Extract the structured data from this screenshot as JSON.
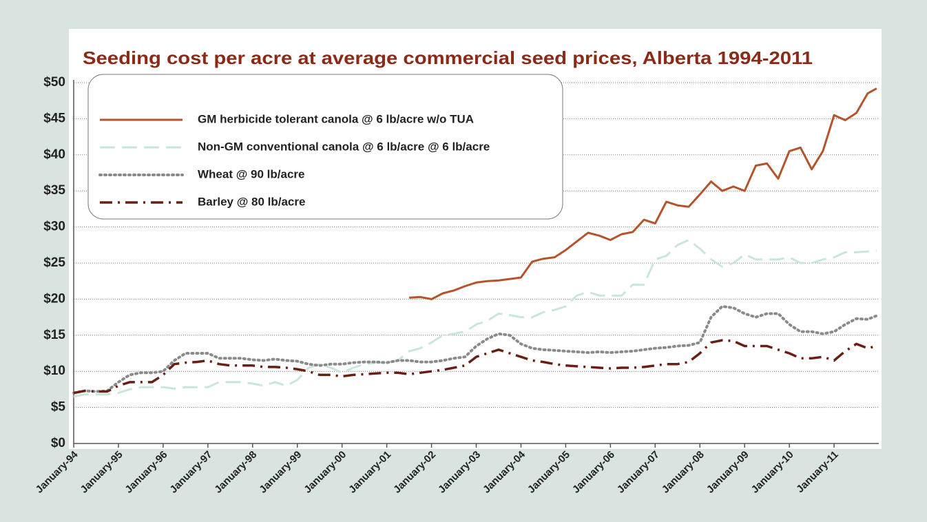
{
  "chart_data": {
    "type": "line",
    "title": "Seeding cost per acre at average commercial seed prices, Alberta 1994-2011",
    "xlim": [
      1994,
      2012
    ],
    "ylim": [
      0,
      50
    ],
    "xticks": [
      {
        "value": 1994,
        "label": "January-94"
      },
      {
        "value": 1995,
        "label": "January-95"
      },
      {
        "value": 1996,
        "label": "January-96"
      },
      {
        "value": 1997,
        "label": "January-97"
      },
      {
        "value": 1998,
        "label": "January-98"
      },
      {
        "value": 1999,
        "label": "January-99"
      },
      {
        "value": 2000,
        "label": "January-00"
      },
      {
        "value": 2001,
        "label": "January-01"
      },
      {
        "value": 2002,
        "label": "January-02"
      },
      {
        "value": 2003,
        "label": "January-03"
      },
      {
        "value": 2004,
        "label": "January-04"
      },
      {
        "value": 2005,
        "label": "January-05"
      },
      {
        "value": 2006,
        "label": "January-06"
      },
      {
        "value": 2007,
        "label": "January-07"
      },
      {
        "value": 2008,
        "label": "January-08"
      },
      {
        "value": 2009,
        "label": "January-09"
      },
      {
        "value": 2010,
        "label": "January-10"
      },
      {
        "value": 2011,
        "label": "January-11"
      }
    ],
    "yticks": [
      {
        "value": 0,
        "label": "$0"
      },
      {
        "value": 5,
        "label": "$5"
      },
      {
        "value": 10,
        "label": "$10"
      },
      {
        "value": 15,
        "label": "$15"
      },
      {
        "value": 20,
        "label": "$20"
      },
      {
        "value": 25,
        "label": "$25"
      },
      {
        "value": 30,
        "label": "$30"
      },
      {
        "value": 35,
        "label": "$35"
      },
      {
        "value": 40,
        "label": "$40"
      },
      {
        "value": 45,
        "label": "$45"
      },
      {
        "value": 50,
        "label": "$50"
      }
    ],
    "grid": true,
    "legend": "upper left",
    "x": [
      1994,
      1994.25,
      1994.5,
      1994.75,
      1995,
      1995.25,
      1995.5,
      1995.75,
      1996,
      1996.25,
      1996.5,
      1996.75,
      1997,
      1997.25,
      1997.5,
      1997.75,
      1998,
      1998.25,
      1998.5,
      1998.75,
      1999,
      1999.25,
      1999.5,
      1999.75,
      2000,
      2000.25,
      2000.5,
      2000.75,
      2001,
      2001.25,
      2001.5,
      2001.75,
      2002,
      2002.25,
      2002.5,
      2002.75,
      2003,
      2003.25,
      2003.5,
      2003.75,
      2004,
      2004.25,
      2004.5,
      2004.75,
      2005,
      2005.25,
      2005.5,
      2005.75,
      2006,
      2006.25,
      2006.5,
      2006.75,
      2007,
      2007.25,
      2007.5,
      2007.75,
      2008,
      2008.25,
      2008.5,
      2008.75,
      2009,
      2009.25,
      2009.5,
      2009.75,
      2010,
      2010.25,
      2010.5,
      2010.75,
      2011,
      2011.25,
      2011.5,
      2011.75,
      2011.95
    ],
    "series": [
      {
        "name": "GM herbicide tolerant canola @ 6 lb/acre w/o TUA",
        "color": "#b5532a",
        "dash": "solid",
        "x": [
          2001.5,
          2001.75,
          2002,
          2002.25,
          2002.5,
          2002.75,
          2003,
          2003.25,
          2003.5,
          2003.75,
          2004,
          2004.25,
          2004.5,
          2004.75,
          2005,
          2005.25,
          2005.5,
          2005.75,
          2006,
          2006.25,
          2006.5,
          2006.75,
          2007,
          2007.25,
          2007.5,
          2007.75,
          2008,
          2008.25,
          2008.5,
          2008.75,
          2009,
          2009.25,
          2009.5,
          2009.75,
          2010,
          2010.25,
          2010.5,
          2010.75,
          2011,
          2011.25,
          2011.5,
          2011.75,
          2011.95
        ],
        "values": [
          20.2,
          20.3,
          20.0,
          20.8,
          21.2,
          21.8,
          22.3,
          22.5,
          22.6,
          22.8,
          23.0,
          25.2,
          25.6,
          25.8,
          26.8,
          28.0,
          29.2,
          28.8,
          28.2,
          29.0,
          29.3,
          31.0,
          30.5,
          33.5,
          33.0,
          32.8,
          34.5,
          36.3,
          35.0,
          35.6,
          35.0,
          38.5,
          38.8,
          36.7,
          40.5,
          41.0,
          38.0,
          40.5,
          45.5,
          44.8,
          45.8,
          48.5,
          49.2
        ]
      },
      {
        "name": "Non-GM conventional canola @ 6 lb/acre @ 6 lb/acre",
        "color": "#c9e6dc",
        "dash": "dashed",
        "values": [
          6.5,
          6.8,
          6.8,
          6.8,
          7.0,
          7.5,
          7.8,
          7.8,
          7.8,
          7.6,
          7.8,
          7.8,
          7.8,
          8.5,
          8.5,
          8.5,
          8.3,
          8.0,
          8.5,
          8.0,
          8.8,
          10.5,
          11.0,
          10.5,
          9.8,
          10.5,
          11.0,
          11.2,
          11.2,
          11.5,
          12.8,
          13.2,
          14.0,
          15.0,
          15.2,
          15.5,
          16.5,
          17.0,
          18.0,
          17.8,
          17.5,
          17.5,
          18.2,
          18.5,
          19.0,
          20.5,
          21.0,
          20.5,
          20.5,
          20.5,
          22.0,
          22.0,
          25.5,
          26.0,
          27.5,
          28.2,
          27.0,
          25.5,
          24.5,
          25.0,
          26.2,
          25.5,
          25.5,
          25.5,
          25.8,
          25.0,
          25.0,
          25.5,
          25.8,
          26.5,
          26.5,
          26.6,
          26.7
        ]
      },
      {
        "name": "Wheat @ 90 lb/acre",
        "color": "#8a8a8a",
        "dash": "dotted",
        "values": [
          7.0,
          7.3,
          7.2,
          7.3,
          8.5,
          9.5,
          9.8,
          9.8,
          10.0,
          11.5,
          12.5,
          12.5,
          12.5,
          11.8,
          11.8,
          11.8,
          11.6,
          11.5,
          11.7,
          11.5,
          11.4,
          11.0,
          10.8,
          11.0,
          11.0,
          11.2,
          11.3,
          11.3,
          11.2,
          11.5,
          11.5,
          11.3,
          11.3,
          11.5,
          11.8,
          12.0,
          13.5,
          14.5,
          15.2,
          15.0,
          13.8,
          13.2,
          13.0,
          12.9,
          12.8,
          12.7,
          12.6,
          12.7,
          12.6,
          12.7,
          12.8,
          13.0,
          13.2,
          13.3,
          13.5,
          13.6,
          14.0,
          17.5,
          19.0,
          18.8,
          18.0,
          17.5,
          18.0,
          18.0,
          16.5,
          15.5,
          15.5,
          15.2,
          15.5,
          16.5,
          17.3,
          17.2,
          17.7
        ]
      },
      {
        "name": "Barley @ 80 lb/acre",
        "color": "#6b1f14",
        "dash": "dashdot",
        "values": [
          7.0,
          7.3,
          7.2,
          7.2,
          8.0,
          8.5,
          8.5,
          8.5,
          9.5,
          11.0,
          11.2,
          11.3,
          11.5,
          11.0,
          10.8,
          10.8,
          10.8,
          10.6,
          10.6,
          10.5,
          10.3,
          10.0,
          9.5,
          9.5,
          9.3,
          9.5,
          9.6,
          9.7,
          9.8,
          9.8,
          9.6,
          9.8,
          10.0,
          10.2,
          10.5,
          10.8,
          12.0,
          12.5,
          13.0,
          12.5,
          12.0,
          11.5,
          11.3,
          11.0,
          10.8,
          10.7,
          10.6,
          10.5,
          10.4,
          10.5,
          10.5,
          10.6,
          10.8,
          11.0,
          11.0,
          11.3,
          12.5,
          14.0,
          14.3,
          14.2,
          13.5,
          13.5,
          13.5,
          13.0,
          12.5,
          11.8,
          11.8,
          12.0,
          11.5,
          12.8,
          13.8,
          13.2,
          13.5
        ]
      }
    ]
  }
}
